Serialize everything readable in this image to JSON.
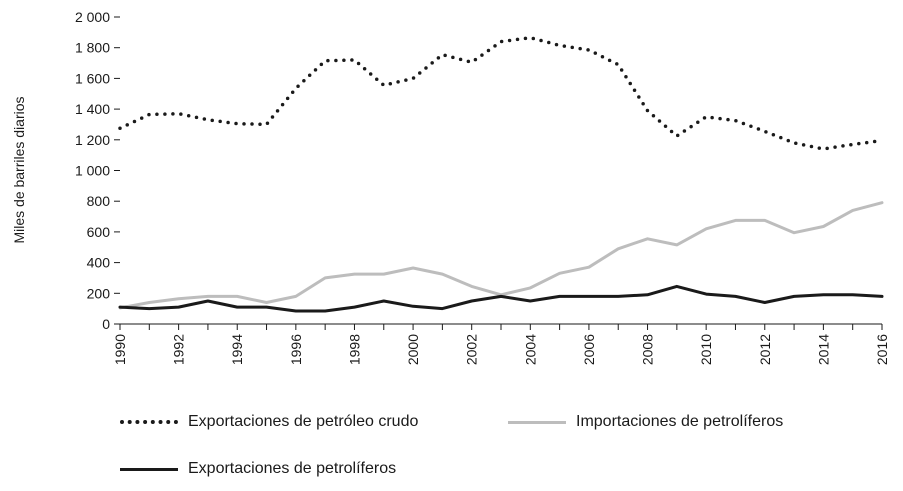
{
  "chart_data": {
    "type": "line",
    "title": "",
    "xlabel": "",
    "ylabel": "Miles de barriles diarios",
    "ylim": [
      0,
      2000
    ],
    "yticks": [
      0,
      200,
      400,
      600,
      800,
      1000,
      1200,
      1400,
      1600,
      1800,
      2000
    ],
    "ytick_labels": [
      "0",
      "200",
      "400",
      "600",
      "800",
      "1 000",
      "1 200",
      "1 400",
      "1 600",
      "1 800",
      "2 000"
    ],
    "xtick_labels": [
      "1990",
      "1992",
      "1994",
      "1996",
      "1998",
      "2000",
      "2002",
      "2004",
      "2006",
      "2008",
      "2010",
      "2012",
      "2014",
      "2016"
    ],
    "x": [
      1990,
      1991,
      1992,
      1993,
      1994,
      1995,
      1996,
      1997,
      1998,
      1999,
      2000,
      2001,
      2002,
      2003,
      2004,
      2005,
      2006,
      2007,
      2008,
      2009,
      2010,
      2011,
      2012,
      2013,
      2014,
      2015,
      2016
    ],
    "series": [
      {
        "name": "Exportaciones de petróleo crudo",
        "style": "dotted",
        "color": "#1a1a1a",
        "values": [
          1275,
          1365,
          1370,
          1330,
          1305,
          1300,
          1535,
          1715,
          1720,
          1555,
          1600,
          1755,
          1705,
          1840,
          1865,
          1815,
          1785,
          1690,
          1390,
          1225,
          1350,
          1325,
          1255,
          1180,
          1140,
          1170,
          1195
        ]
      },
      {
        "name": "Importaciones de petrolíferos",
        "style": "solid",
        "color": "#bdbdbd",
        "values": [
          105,
          140,
          165,
          180,
          180,
          140,
          180,
          300,
          325,
          325,
          365,
          325,
          245,
          190,
          235,
          330,
          370,
          490,
          555,
          515,
          620,
          675,
          675,
          595,
          635,
          740,
          790
        ]
      },
      {
        "name": "Exportaciones de petrolíferos",
        "style": "solid",
        "color": "#1a1a1a",
        "values": [
          110,
          100,
          110,
          150,
          110,
          110,
          85,
          85,
          110,
          150,
          115,
          100,
          150,
          180,
          150,
          180,
          180,
          180,
          190,
          245,
          195,
          180,
          140,
          180,
          190,
          190,
          180
        ]
      }
    ],
    "legend_position": "bottom"
  }
}
